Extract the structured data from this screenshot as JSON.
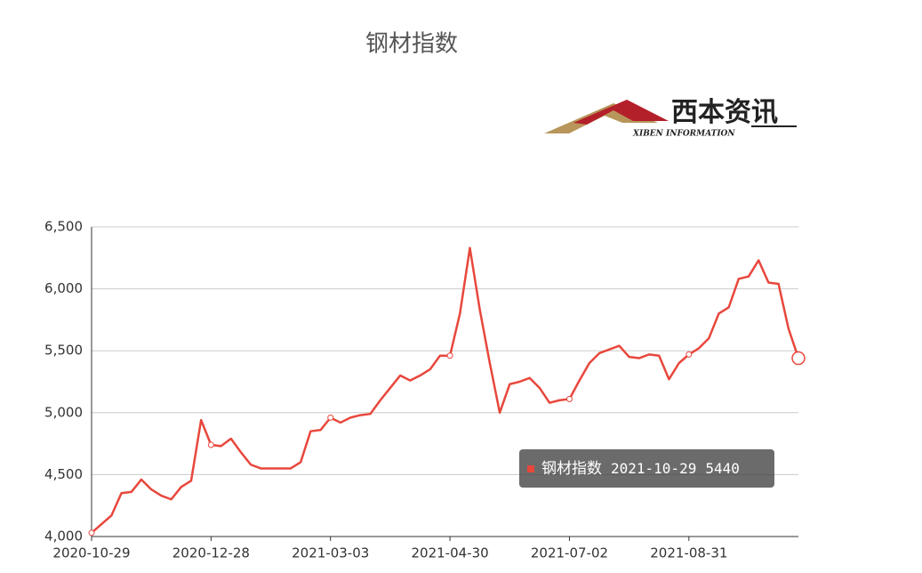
{
  "chart_data": {
    "type": "line",
    "title": "钢材指数",
    "logo": {
      "name": "西本资讯",
      "subtitle": "XIBEN INFORMATION"
    },
    "categories": [
      "2020-10-29",
      null,
      null,
      null,
      null,
      null,
      null,
      null,
      null,
      null,
      null,
      null,
      "2020-12-28",
      null,
      null,
      null,
      null,
      null,
      null,
      null,
      null,
      null,
      null,
      null,
      "2021-03-03",
      null,
      null,
      null,
      null,
      null,
      null,
      null,
      null,
      null,
      null,
      null,
      "2021-04-30",
      null,
      null,
      null,
      null,
      null,
      null,
      null,
      null,
      null,
      null,
      null,
      "2021-07-02",
      null,
      null,
      null,
      null,
      null,
      null,
      null,
      null,
      null,
      null,
      null,
      "2021-08-31",
      null,
      null,
      null,
      null,
      null,
      null,
      null,
      null,
      null,
      null,
      "2021-10-29"
    ],
    "series": [
      {
        "name": "钢材指数",
        "color": "#e8473c",
        "values": [
          4030,
          4100,
          4170,
          4350,
          4360,
          4460,
          4380,
          4330,
          4300,
          4400,
          4450,
          4940,
          4740,
          4730,
          4790,
          4680,
          4580,
          4550,
          4550,
          4550,
          4550,
          4600,
          4850,
          4860,
          4960,
          4920,
          4960,
          4980,
          4990,
          5100,
          5200,
          5300,
          5260,
          5300,
          5350,
          5460,
          5460,
          5800,
          6330,
          5830,
          5400,
          5000,
          5230,
          5250,
          5280,
          5200,
          5080,
          5100,
          5110,
          5260,
          5400,
          5480,
          5510,
          5540,
          5450,
          5440,
          5470,
          5460,
          5270,
          5400,
          5470,
          5520,
          5600,
          5800,
          5850,
          6080,
          6100,
          6230,
          6050,
          6040,
          5680,
          5440
        ]
      }
    ],
    "ylim": [
      4000,
      6500
    ],
    "yticks": [
      {
        "value": 4000,
        "label": "4,000"
      },
      {
        "value": 4500,
        "label": "4,500"
      },
      {
        "value": 5000,
        "label": "5,000"
      },
      {
        "value": 5500,
        "label": "5,500"
      },
      {
        "value": 6000,
        "label": "6,000"
      },
      {
        "value": 6500,
        "label": "6,500"
      }
    ],
    "grid": true
  }
}
